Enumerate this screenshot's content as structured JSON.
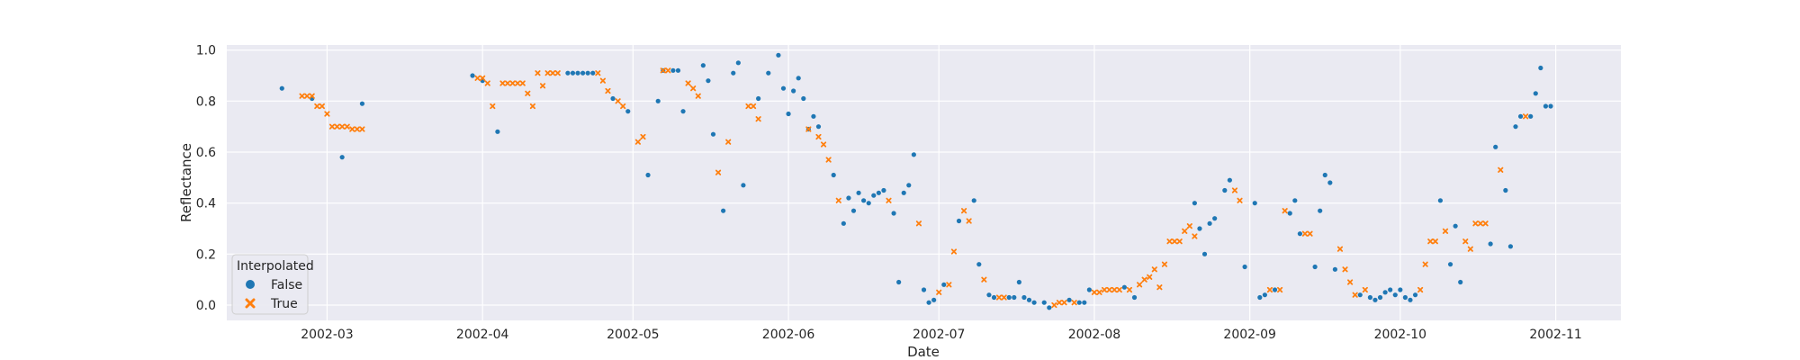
{
  "chart_data": {
    "type": "scatter",
    "title": "",
    "xlabel": "Date",
    "ylabel": "Reflectance",
    "ylim": [
      -0.06,
      1.02
    ],
    "xlim": [
      "2002-02-09",
      "2002-11-14"
    ],
    "y_ticks": [
      "0.0",
      "0.2",
      "0.4",
      "0.6",
      "0.8",
      "1.0"
    ],
    "x_ticks": [
      "2002-03",
      "2002-04",
      "2002-05",
      "2002-06",
      "2002-07",
      "2002-08",
      "2002-09",
      "2002-10",
      "2002-11"
    ],
    "grid": true,
    "legend": {
      "title": "Interpolated",
      "placement": "lower-left",
      "entries": [
        {
          "label": "False",
          "marker": "circle",
          "color": "#1f77b4"
        },
        {
          "label": "True",
          "marker": "x",
          "color": "#ff7f0e"
        }
      ]
    },
    "series": [
      {
        "name": "False",
        "color": "#1f77b4",
        "marker": "circle",
        "points": [
          [
            "2002-02-20",
            0.85
          ],
          [
            "2002-02-26",
            0.81
          ],
          [
            "2002-03-04",
            0.58
          ],
          [
            "2002-03-08",
            0.79
          ],
          [
            "2002-03-30",
            0.9
          ],
          [
            "2002-04-01",
            0.88
          ],
          [
            "2002-04-04",
            0.68
          ],
          [
            "2002-04-18",
            0.91
          ],
          [
            "2002-04-19",
            0.91
          ],
          [
            "2002-04-20",
            0.91
          ],
          [
            "2002-04-21",
            0.91
          ],
          [
            "2002-04-22",
            0.91
          ],
          [
            "2002-04-23",
            0.91
          ],
          [
            "2002-04-27",
            0.81
          ],
          [
            "2002-04-30",
            0.76
          ],
          [
            "2002-05-04",
            0.51
          ],
          [
            "2002-05-06",
            0.8
          ],
          [
            "2002-05-07",
            0.92
          ],
          [
            "2002-05-09",
            0.92
          ],
          [
            "2002-05-10",
            0.92
          ],
          [
            "2002-05-11",
            0.76
          ],
          [
            "2002-05-15",
            0.94
          ],
          [
            "2002-05-16",
            0.88
          ],
          [
            "2002-05-17",
            0.67
          ],
          [
            "2002-05-19",
            0.37
          ],
          [
            "2002-05-21",
            0.91
          ],
          [
            "2002-05-22",
            0.95
          ],
          [
            "2002-05-23",
            0.47
          ],
          [
            "2002-05-26",
            0.81
          ],
          [
            "2002-05-28",
            0.91
          ],
          [
            "2002-05-30",
            0.98
          ],
          [
            "2002-05-31",
            0.85
          ],
          [
            "2002-06-01",
            0.75
          ],
          [
            "2002-06-02",
            0.84
          ],
          [
            "2002-06-03",
            0.89
          ],
          [
            "2002-06-04",
            0.81
          ],
          [
            "2002-06-05",
            0.69
          ],
          [
            "2002-06-06",
            0.74
          ],
          [
            "2002-06-07",
            0.7
          ],
          [
            "2002-06-10",
            0.51
          ],
          [
            "2002-06-12",
            0.32
          ],
          [
            "2002-06-13",
            0.42
          ],
          [
            "2002-06-14",
            0.37
          ],
          [
            "2002-06-15",
            0.44
          ],
          [
            "2002-06-16",
            0.41
          ],
          [
            "2002-06-17",
            0.4
          ],
          [
            "2002-06-18",
            0.43
          ],
          [
            "2002-06-19",
            0.44
          ],
          [
            "2002-06-20",
            0.45
          ],
          [
            "2002-06-22",
            0.36
          ],
          [
            "2002-06-23",
            0.09
          ],
          [
            "2002-06-24",
            0.44
          ],
          [
            "2002-06-25",
            0.47
          ],
          [
            "2002-06-26",
            0.59
          ],
          [
            "2002-06-28",
            0.06
          ],
          [
            "2002-06-29",
            0.01
          ],
          [
            "2002-06-30",
            0.02
          ],
          [
            "2002-07-02",
            0.08
          ],
          [
            "2002-07-05",
            0.33
          ],
          [
            "2002-07-08",
            0.41
          ],
          [
            "2002-07-09",
            0.16
          ],
          [
            "2002-07-11",
            0.04
          ],
          [
            "2002-07-12",
            0.03
          ],
          [
            "2002-07-15",
            0.03
          ],
          [
            "2002-07-16",
            0.03
          ],
          [
            "2002-07-17",
            0.09
          ],
          [
            "2002-07-18",
            0.03
          ],
          [
            "2002-07-19",
            0.02
          ],
          [
            "2002-07-20",
            0.01
          ],
          [
            "2002-07-22",
            0.01
          ],
          [
            "2002-07-23",
            -0.01
          ],
          [
            "2002-07-27",
            0.02
          ],
          [
            "2002-07-29",
            0.01
          ],
          [
            "2002-07-30",
            0.01
          ],
          [
            "2002-07-31",
            0.06
          ],
          [
            "2002-08-07",
            0.07
          ],
          [
            "2002-08-09",
            0.03
          ],
          [
            "2002-08-21",
            0.4
          ],
          [
            "2002-08-22",
            0.3
          ],
          [
            "2002-08-23",
            0.2
          ],
          [
            "2002-08-24",
            0.32
          ],
          [
            "2002-08-25",
            0.34
          ],
          [
            "2002-08-27",
            0.45
          ],
          [
            "2002-08-28",
            0.49
          ],
          [
            "2002-08-31",
            0.15
          ],
          [
            "2002-09-02",
            0.4
          ],
          [
            "2002-09-03",
            0.03
          ],
          [
            "2002-09-04",
            0.04
          ],
          [
            "2002-09-06",
            0.06
          ],
          [
            "2002-09-09",
            0.36
          ],
          [
            "2002-09-10",
            0.41
          ],
          [
            "2002-09-11",
            0.28
          ],
          [
            "2002-09-14",
            0.15
          ],
          [
            "2002-09-15",
            0.37
          ],
          [
            "2002-09-16",
            0.51
          ],
          [
            "2002-09-17",
            0.48
          ],
          [
            "2002-09-18",
            0.14
          ],
          [
            "2002-09-23",
            0.04
          ],
          [
            "2002-09-25",
            0.03
          ],
          [
            "2002-09-26",
            0.02
          ],
          [
            "2002-09-27",
            0.03
          ],
          [
            "2002-09-28",
            0.05
          ],
          [
            "2002-09-29",
            0.06
          ],
          [
            "2002-09-30",
            0.04
          ],
          [
            "2002-10-01",
            0.06
          ],
          [
            "2002-10-02",
            0.03
          ],
          [
            "2002-10-03",
            0.02
          ],
          [
            "2002-10-04",
            0.04
          ],
          [
            "2002-10-09",
            0.41
          ],
          [
            "2002-10-11",
            0.16
          ],
          [
            "2002-10-12",
            0.31
          ],
          [
            "2002-10-13",
            0.09
          ],
          [
            "2002-10-19",
            0.24
          ],
          [
            "2002-10-20",
            0.62
          ],
          [
            "2002-10-22",
            0.45
          ],
          [
            "2002-10-23",
            0.23
          ],
          [
            "2002-10-24",
            0.7
          ],
          [
            "2002-10-25",
            0.74
          ],
          [
            "2002-10-27",
            0.74
          ],
          [
            "2002-10-28",
            0.83
          ],
          [
            "2002-10-29",
            0.93
          ],
          [
            "2002-10-30",
            0.78
          ],
          [
            "2002-10-31",
            0.78
          ]
        ]
      },
      {
        "name": "True",
        "color": "#ff7f0e",
        "marker": "x",
        "points": [
          [
            "2002-02-24",
            0.82
          ],
          [
            "2002-02-25",
            0.82
          ],
          [
            "2002-02-26",
            0.82
          ],
          [
            "2002-02-27",
            0.78
          ],
          [
            "2002-02-28",
            0.78
          ],
          [
            "2002-03-01",
            0.75
          ],
          [
            "2002-03-02",
            0.7
          ],
          [
            "2002-03-03",
            0.7
          ],
          [
            "2002-03-04",
            0.7
          ],
          [
            "2002-03-05",
            0.7
          ],
          [
            "2002-03-06",
            0.69
          ],
          [
            "2002-03-07",
            0.69
          ],
          [
            "2002-03-08",
            0.69
          ],
          [
            "2002-03-31",
            0.89
          ],
          [
            "2002-04-01",
            0.89
          ],
          [
            "2002-04-02",
            0.87
          ],
          [
            "2002-04-03",
            0.78
          ],
          [
            "2002-04-05",
            0.87
          ],
          [
            "2002-04-06",
            0.87
          ],
          [
            "2002-04-07",
            0.87
          ],
          [
            "2002-04-08",
            0.87
          ],
          [
            "2002-04-09",
            0.87
          ],
          [
            "2002-04-10",
            0.83
          ],
          [
            "2002-04-11",
            0.78
          ],
          [
            "2002-04-12",
            0.91
          ],
          [
            "2002-04-13",
            0.86
          ],
          [
            "2002-04-14",
            0.91
          ],
          [
            "2002-04-15",
            0.91
          ],
          [
            "2002-04-16",
            0.91
          ],
          [
            "2002-04-24",
            0.91
          ],
          [
            "2002-04-25",
            0.88
          ],
          [
            "2002-04-26",
            0.84
          ],
          [
            "2002-04-28",
            0.8
          ],
          [
            "2002-04-29",
            0.78
          ],
          [
            "2002-05-02",
            0.64
          ],
          [
            "2002-05-03",
            0.66
          ],
          [
            "2002-05-07",
            0.92
          ],
          [
            "2002-05-08",
            0.92
          ],
          [
            "2002-05-12",
            0.87
          ],
          [
            "2002-05-13",
            0.85
          ],
          [
            "2002-05-14",
            0.82
          ],
          [
            "2002-05-18",
            0.52
          ],
          [
            "2002-05-20",
            0.64
          ],
          [
            "2002-05-24",
            0.78
          ],
          [
            "2002-05-25",
            0.78
          ],
          [
            "2002-05-26",
            0.73
          ],
          [
            "2002-06-05",
            0.69
          ],
          [
            "2002-06-07",
            0.66
          ],
          [
            "2002-06-08",
            0.63
          ],
          [
            "2002-06-09",
            0.57
          ],
          [
            "2002-06-11",
            0.41
          ],
          [
            "2002-06-21",
            0.41
          ],
          [
            "2002-06-27",
            0.32
          ],
          [
            "2002-07-01",
            0.05
          ],
          [
            "2002-07-03",
            0.08
          ],
          [
            "2002-07-04",
            0.21
          ],
          [
            "2002-07-06",
            0.37
          ],
          [
            "2002-07-07",
            0.33
          ],
          [
            "2002-07-10",
            0.1
          ],
          [
            "2002-07-13",
            0.03
          ],
          [
            "2002-07-14",
            0.03
          ],
          [
            "2002-07-24",
            0.0
          ],
          [
            "2002-07-25",
            0.01
          ],
          [
            "2002-07-26",
            0.01
          ],
          [
            "2002-07-28",
            0.01
          ],
          [
            "2002-08-01",
            0.05
          ],
          [
            "2002-08-02",
            0.05
          ],
          [
            "2002-08-03",
            0.06
          ],
          [
            "2002-08-04",
            0.06
          ],
          [
            "2002-08-05",
            0.06
          ],
          [
            "2002-08-06",
            0.06
          ],
          [
            "2002-08-08",
            0.06
          ],
          [
            "2002-08-10",
            0.08
          ],
          [
            "2002-08-11",
            0.1
          ],
          [
            "2002-08-12",
            0.11
          ],
          [
            "2002-08-13",
            0.14
          ],
          [
            "2002-08-14",
            0.07
          ],
          [
            "2002-08-15",
            0.16
          ],
          [
            "2002-08-16",
            0.25
          ],
          [
            "2002-08-17",
            0.25
          ],
          [
            "2002-08-18",
            0.25
          ],
          [
            "2002-08-19",
            0.29
          ],
          [
            "2002-08-20",
            0.31
          ],
          [
            "2002-08-21",
            0.27
          ],
          [
            "2002-08-29",
            0.45
          ],
          [
            "2002-08-30",
            0.41
          ],
          [
            "2002-09-05",
            0.06
          ],
          [
            "2002-09-07",
            0.06
          ],
          [
            "2002-09-08",
            0.37
          ],
          [
            "2002-09-12",
            0.28
          ],
          [
            "2002-09-13",
            0.28
          ],
          [
            "2002-09-19",
            0.22
          ],
          [
            "2002-09-20",
            0.14
          ],
          [
            "2002-09-21",
            0.09
          ],
          [
            "2002-09-22",
            0.04
          ],
          [
            "2002-09-24",
            0.06
          ],
          [
            "2002-10-05",
            0.06
          ],
          [
            "2002-10-06",
            0.16
          ],
          [
            "2002-10-07",
            0.25
          ],
          [
            "2002-10-08",
            0.25
          ],
          [
            "2002-10-10",
            0.29
          ],
          [
            "2002-10-14",
            0.25
          ],
          [
            "2002-10-15",
            0.22
          ],
          [
            "2002-10-16",
            0.32
          ],
          [
            "2002-10-17",
            0.32
          ],
          [
            "2002-10-18",
            0.32
          ],
          [
            "2002-10-21",
            0.53
          ],
          [
            "2002-10-26",
            0.74
          ]
        ]
      }
    ]
  }
}
